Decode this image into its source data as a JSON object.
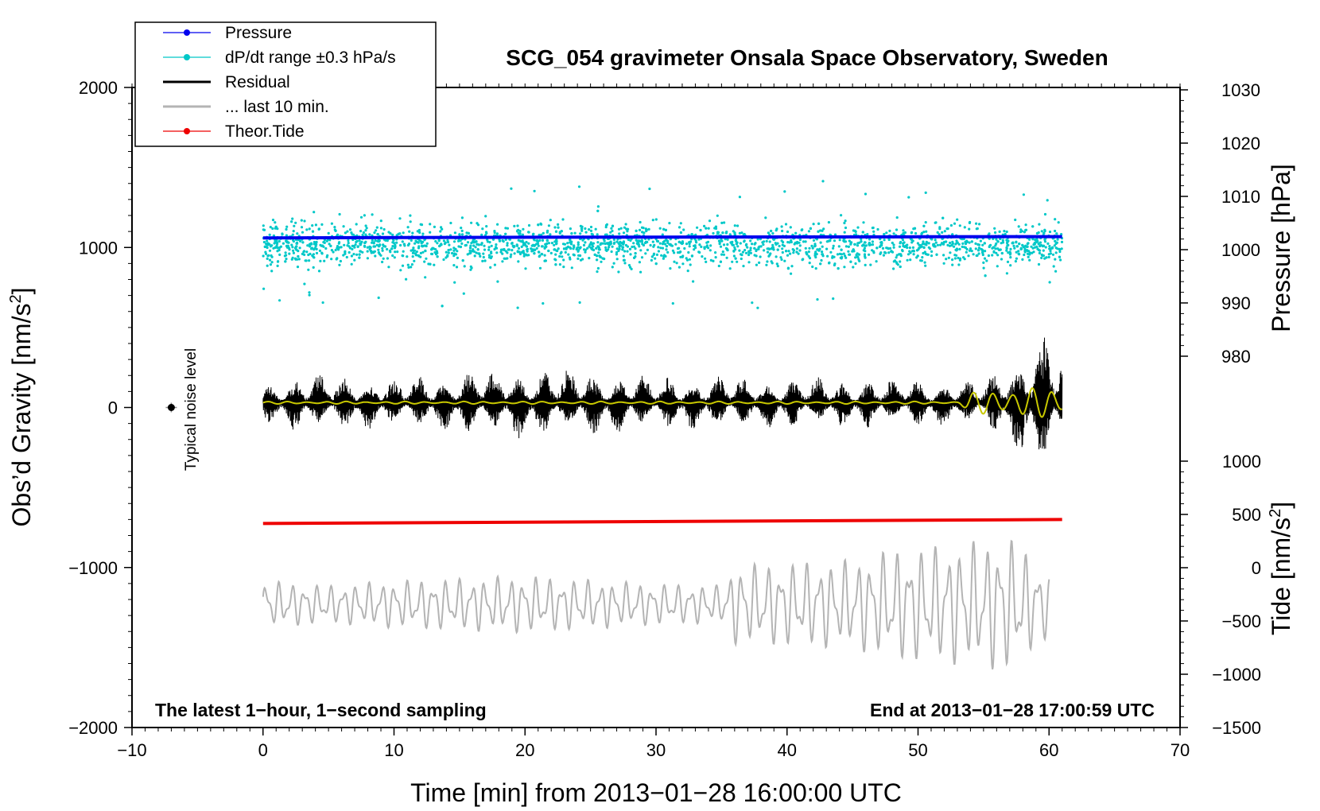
{
  "chart_data": {
    "type": "line",
    "title": "SCG_054 gravimeter Onsala Space Observatory, Sweden",
    "xlabel": "Time [min] from 2013−01−28 16:00:00 UTC",
    "ylabel_left": "Obs’d Gravity [nm/s",
    "ylabel_left_sup": "2",
    "ylabel_left_close": "]",
    "ylabel_pressure": "Pressure [hPa]",
    "ylabel_tide": "Tide [nm/s",
    "ylabel_tide_sup": "2",
    "ylabel_tide_close": "]",
    "xlim": [
      -10,
      70
    ],
    "ylim_left": [
      -2000,
      2000
    ],
    "pressure_ylim": [
      980,
      1030
    ],
    "tide_ylim": [
      -1500,
      1000
    ],
    "x_ticks": [
      -10,
      0,
      10,
      20,
      30,
      40,
      50,
      60,
      70
    ],
    "x_tick_labels": [
      "−10",
      "0",
      "10",
      "20",
      "30",
      "40",
      "50",
      "60",
      "70"
    ],
    "y_left_ticks": [
      -2000,
      -1000,
      0,
      1000,
      2000
    ],
    "y_left_tick_labels": [
      "−2000",
      "−1000",
      "0",
      "1000",
      "2000"
    ],
    "pressure_ticks": [
      980,
      990,
      1000,
      1010,
      1020,
      1030
    ],
    "pressure_tick_labels": [
      "980",
      "990",
      "1000",
      "1010",
      "1020",
      "1030"
    ],
    "tide_ticks": [
      -1500,
      -1000,
      -500,
      0,
      500,
      1000
    ],
    "tide_tick_labels": [
      "−1500",
      "−1000",
      "−500",
      "0",
      "500",
      "1000"
    ],
    "grid": false,
    "legend_position": "top-left",
    "legend": [
      {
        "label": "Pressure",
        "color": "#0000ee",
        "style": "line-dot"
      },
      {
        "label": "dP/dt range ±0.3 hPa/s",
        "color": "#00c8c8",
        "style": "line-dot"
      },
      {
        "label": "Residual",
        "color": "#000000",
        "style": "line"
      },
      {
        "label": "... last 10 min.",
        "color": "#b4b4b4",
        "style": "line"
      },
      {
        "label": "Theor.Tide",
        "color": "#ee0000",
        "style": "line-dot"
      }
    ],
    "annotations": {
      "bottom_left": "The latest 1−hour, 1−second sampling",
      "bottom_right": "End at 2013−01−28 17:00:59 UTC",
      "noise_label": "Typical noise level"
    },
    "noise_marker": {
      "x": -7,
      "y": 0,
      "error": 30
    },
    "series": [
      {
        "name": "Pressure",
        "axis": "left",
        "color": "#0000ee",
        "x": [
          0,
          10,
          20,
          30,
          40,
          50,
          61
        ],
        "y": [
          1060,
          1062,
          1064,
          1065,
          1066,
          1067,
          1068
        ]
      },
      {
        "name": "dP/dt range ±0.3 hPa/s",
        "axis": "left",
        "color": "#00c8c8",
        "x_range": [
          0,
          61
        ],
        "y_center": 1020,
        "y_spread": 250
      },
      {
        "name": "Residual",
        "axis": "left",
        "color": "#000000",
        "x_range": [
          0,
          61
        ],
        "y_center": 30,
        "amplitude": 200,
        "envelope": [
          [
            0,
            120
          ],
          [
            2,
            180
          ],
          [
            4,
            200
          ],
          [
            10,
            160
          ],
          [
            20,
            250
          ],
          [
            30,
            180
          ],
          [
            40,
            170
          ],
          [
            50,
            160
          ],
          [
            55,
            150
          ],
          [
            57,
            300
          ],
          [
            59,
            450
          ],
          [
            61,
            480
          ]
        ]
      },
      {
        "name": "smoothed residual",
        "axis": "left",
        "color": "#c8c800",
        "x_range": [
          0,
          61
        ],
        "y_center": 30,
        "amplitude": 8,
        "envelope": [
          [
            0,
            8
          ],
          [
            53,
            8
          ],
          [
            54,
            60
          ],
          [
            57,
            110
          ],
          [
            61,
            80
          ]
        ]
      },
      {
        "name": "Theor.Tide",
        "axis": "left",
        "color": "#ee0000",
        "x": [
          0,
          61
        ],
        "y": [
          -725,
          -700
        ]
      },
      {
        "name": "... last 10 min.",
        "axis": "left",
        "color": "#b4b4b4",
        "x_range": [
          0,
          60
        ],
        "y_center": -1230,
        "amplitude": 160,
        "envelope": [
          [
            0,
            150
          ],
          [
            5,
            120
          ],
          [
            10,
            150
          ],
          [
            20,
            180
          ],
          [
            30,
            130
          ],
          [
            35,
            120
          ],
          [
            36,
            250
          ],
          [
            45,
            280
          ],
          [
            48,
            350
          ],
          [
            53,
            380
          ],
          [
            57,
            430
          ],
          [
            60,
            200
          ]
        ]
      }
    ]
  }
}
